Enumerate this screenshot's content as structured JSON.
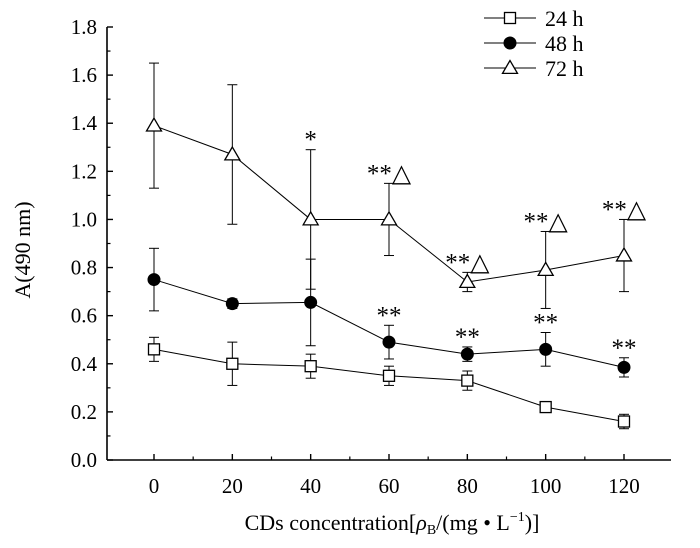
{
  "chart_data": {
    "type": "line",
    "title": "",
    "xlabel": "CDs concentration[",
    "xlabel_rho": "ρ",
    "xlabel_sub": "B",
    "xlabel_unit": "/(mg • L",
    "xlabel_sup": "−1",
    "xlabel_end": ")]",
    "ylabel": "A(490  nm)",
    "x": [
      0,
      20,
      40,
      60,
      80,
      100,
      120
    ],
    "x_ticks": [
      "0",
      "20",
      "40",
      "60",
      "80",
      "100",
      "120"
    ],
    "y_ticks": [
      "0.0",
      "0.2",
      "0.4",
      "0.6",
      "0.8",
      "1.0",
      "1.2",
      "1.4",
      "1.6",
      "1.8"
    ],
    "xlim": [
      -12,
      132
    ],
    "ylim": [
      0,
      1.8
    ],
    "legend_position": "top-right",
    "series": [
      {
        "name": "24 h",
        "marker": "square-open",
        "values": [
          0.46,
          0.4,
          0.39,
          0.35,
          0.33,
          0.22,
          0.16
        ],
        "errors": [
          0.05,
          0.09,
          0.05,
          0.04,
          0.04,
          0.01,
          0.03
        ],
        "annotations": [
          "",
          "",
          "",
          "",
          "",
          "",
          ""
        ]
      },
      {
        "name": "48 h",
        "marker": "circle-filled",
        "values": [
          0.75,
          0.65,
          0.655,
          0.49,
          0.44,
          0.46,
          0.385
        ],
        "errors": [
          0.13,
          0.02,
          0.18,
          0.07,
          0.03,
          0.07,
          0.04
        ],
        "annotations": [
          "",
          "",
          "",
          "**",
          "**",
          "**",
          "**"
        ]
      },
      {
        "name": "72 h",
        "marker": "triangle-open",
        "values": [
          1.39,
          1.27,
          1.0,
          1.0,
          0.74,
          0.79,
          0.85
        ],
        "errors": [
          0.26,
          0.29,
          0.29,
          0.15,
          0.04,
          0.16,
          0.15
        ],
        "annotations": [
          "",
          "",
          "*",
          "**△",
          "**△",
          "**△",
          "**△"
        ]
      }
    ]
  }
}
